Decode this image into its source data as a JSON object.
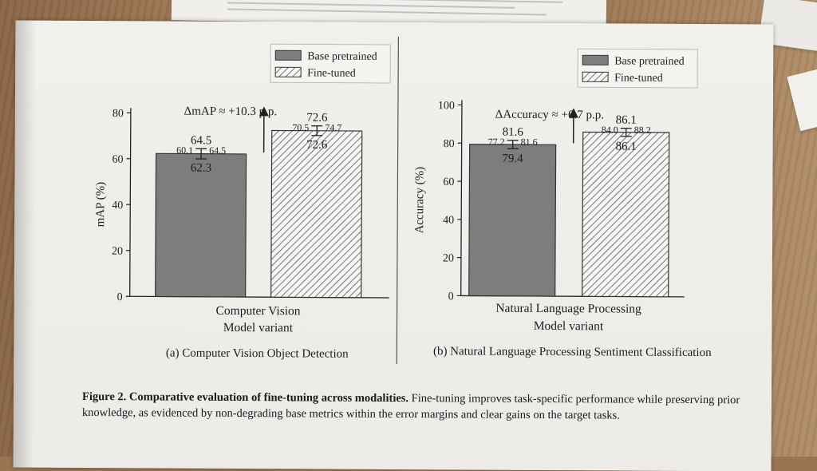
{
  "chart_data": [
    {
      "type": "bar",
      "title": "(a) Computer Vision Object Detection",
      "xlabel": "Model variant",
      "ylabel": "mAP (%)",
      "categories": [
        "Computer Vision"
      ],
      "ylim": [
        0,
        80
      ],
      "yticks": [
        0,
        20,
        40,
        60,
        80
      ],
      "legend": "top-right",
      "series": [
        {
          "name": "Base pretrained",
          "values": [
            62.3
          ],
          "err_low": [
            60.1
          ],
          "err_high": [
            64.5
          ],
          "color": "#7d7d7d",
          "pattern": "solid"
        },
        {
          "name": "Fine-tuned",
          "values": [
            72.6
          ],
          "err_low": [
            70.5
          ],
          "err_high": [
            74.7
          ],
          "color": "#ffffff",
          "pattern": "hatch"
        }
      ],
      "bar_labels": [
        {
          "top": "64.5",
          "left": "60.1",
          "right": "64.5",
          "center": "62.3"
        },
        {
          "top": "72.6",
          "left": "70.5",
          "right": "74.7",
          "center": "72.6"
        }
      ],
      "annotation": "ΔmAP ≈ +10.3 p.p."
    },
    {
      "type": "bar",
      "title": "(b) Natural Language Processing Sentiment Classification",
      "xlabel": "Model variant",
      "ylabel": "Accuracy (%)",
      "categories": [
        "Natural Language Processing"
      ],
      "ylim": [
        0,
        100
      ],
      "yticks": [
        0,
        20,
        40,
        60,
        80,
        100
      ],
      "legend": "top-right",
      "series": [
        {
          "name": "Base pretrained",
          "values": [
            79.4
          ],
          "err_low": [
            77.2
          ],
          "err_high": [
            81.6
          ],
          "color": "#7d7d7d",
          "pattern": "solid"
        },
        {
          "name": "Fine-tuned",
          "values": [
            86.1
          ],
          "err_low": [
            84.0
          ],
          "err_high": [
            88.2
          ],
          "color": "#ffffff",
          "pattern": "hatch"
        }
      ],
      "bar_labels": [
        {
          "top": "81.6",
          "left": "77.2",
          "right": "81.6",
          "center": "79.4"
        },
        {
          "top": "86.1",
          "left": "84.0",
          "right": "88.2",
          "center": "86.1"
        }
      ],
      "annotation": "ΔAccuracy ≈ +6.7 p.p."
    }
  ],
  "caption": {
    "lead": "Figure 2. Comparative evaluation of fine-tuning across modalities.",
    "body": " Fine-tuning improves task-specific performance while preserving prior knowledge, as evidenced by non-degrading base metrics within the error margins and clear gains on the target tasks."
  }
}
